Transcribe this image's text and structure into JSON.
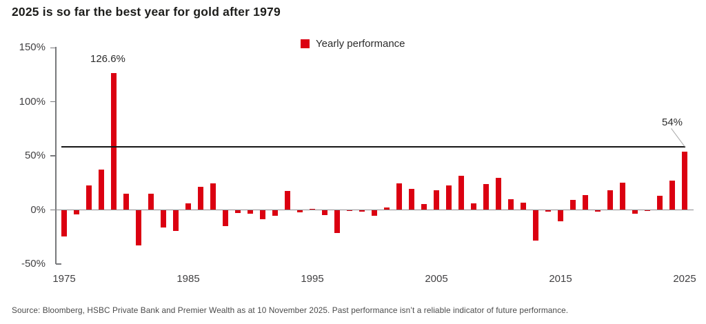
{
  "title": "2025 is so far the best year for gold after 1979",
  "legend": {
    "label": "Yearly performance"
  },
  "source": "Source: Bloomberg, HSBC Private Bank and Premier Wealth as at 10 November 2025. Past performance isn’t a reliable indicator of future performance.",
  "colors": {
    "bar_red": "#db0011",
    "axis_gray": "#77787b",
    "reference_line_black": "#151515",
    "leader_gray": "#a8a8a8"
  },
  "chart_data": {
    "type": "bar",
    "title": "2025 is so far the best year for gold after 1979",
    "xlabel": "",
    "ylabel": "",
    "ylim": [
      -50,
      150
    ],
    "grid": false,
    "legend_position": "top-center",
    "legend_entries": [
      "Yearly performance"
    ],
    "ytick_labels": [
      "150%",
      "100%",
      "50%",
      "0%",
      "-50%"
    ],
    "ytick_values": [
      150,
      100,
      50,
      0,
      -50
    ],
    "xtick_labels": [
      "1975",
      "1985",
      "1995",
      "2005",
      "2015",
      "2025"
    ],
    "xtick_values": [
      1975,
      1985,
      1995,
      2005,
      2015,
      2025
    ],
    "x": [
      1975,
      1976,
      1977,
      1978,
      1979,
      1980,
      1981,
      1982,
      1983,
      1984,
      1985,
      1986,
      1987,
      1988,
      1989,
      1990,
      1991,
      1992,
      1993,
      1994,
      1995,
      1996,
      1997,
      1998,
      1999,
      2000,
      2001,
      2002,
      2003,
      2004,
      2005,
      2006,
      2007,
      2008,
      2009,
      2010,
      2011,
      2012,
      2013,
      2014,
      2015,
      2016,
      2017,
      2018,
      2019,
      2020,
      2021,
      2022,
      2023,
      2024,
      2025
    ],
    "values": [
      -24.8,
      -4.1,
      22.6,
      37.0,
      126.6,
      15.2,
      -32.6,
      14.9,
      -16.3,
      -19.2,
      5.8,
      21.3,
      24.5,
      -15.3,
      -2.8,
      -3.7,
      -8.6,
      -5.7,
      17.7,
      -2.2,
      1.0,
      -4.6,
      -21.4,
      -0.8,
      -1.5,
      -5.4,
      2.5,
      24.8,
      19.4,
      5.5,
      18.2,
      22.8,
      31.4,
      5.8,
      23.9,
      29.8,
      10.1,
      7.0,
      -28.3,
      -1.5,
      -10.4,
      9.1,
      13.5,
      -1.6,
      18.3,
      25.1,
      -3.6,
      -0.3,
      13.1,
      27.2,
      54.0
    ],
    "reference_line": {
      "value": 57
    },
    "annotations": [
      {
        "year": 1979,
        "text": "126.6%"
      },
      {
        "year": 2025,
        "text": "54%"
      }
    ]
  }
}
